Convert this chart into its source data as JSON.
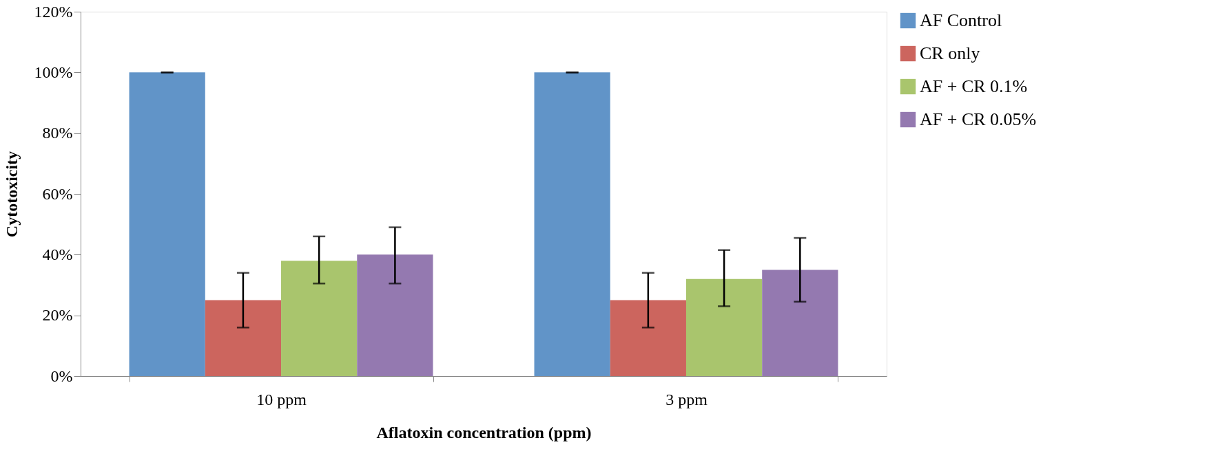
{
  "chart_data": {
    "type": "bar",
    "xlabel": "Aflatoxin concentration (ppm)",
    "ylabel": "Cytotoxicity",
    "categories": [
      "10 ppm",
      "3 ppm"
    ],
    "series": [
      {
        "name": "AF Control",
        "color": "#6194c8",
        "values": [
          100,
          100
        ],
        "errors": [
          0,
          0
        ]
      },
      {
        "name": "CR only",
        "color": "#cc655e",
        "values": [
          25,
          25
        ],
        "errors": [
          [
            16,
            34
          ],
          [
            16,
            34
          ]
        ]
      },
      {
        "name": "AF + CR 0.1%",
        "color": "#a9c56d",
        "values": [
          38,
          32
        ],
        "errors": [
          [
            30.5,
            46
          ],
          [
            23,
            41.5
          ]
        ]
      },
      {
        "name": "AF + CR 0.05%",
        "color": "#9479b0",
        "values": [
          40,
          35
        ],
        "errors": [
          [
            30.5,
            49
          ],
          [
            24.5,
            45.5
          ]
        ]
      }
    ],
    "ylim": [
      0,
      120
    ],
    "yticks": [
      {
        "value": 0,
        "label": "0%"
      },
      {
        "value": 20,
        "label": "20%"
      },
      {
        "value": 40,
        "label": "40%"
      },
      {
        "value": 60,
        "label": "60%"
      },
      {
        "value": 80,
        "label": "80%"
      },
      {
        "value": 100,
        "label": "100%"
      },
      {
        "value": 120,
        "label": "120%"
      }
    ],
    "grid": false,
    "legend": "top right"
  }
}
